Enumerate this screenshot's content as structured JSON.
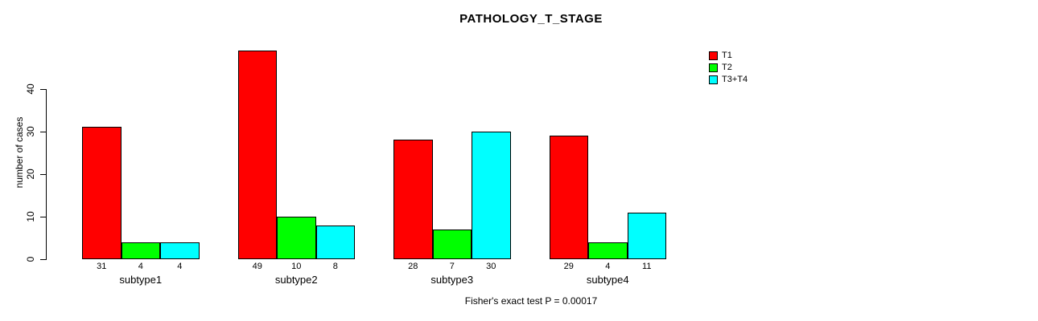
{
  "chart_data": {
    "type": "bar",
    "title": "PATHOLOGY_T_STAGE",
    "ylabel": "number of cases",
    "xlabel": "",
    "caption": "Fisher's exact test P = 0.00017",
    "categories": [
      "subtype1",
      "subtype2",
      "subtype3",
      "subtype4"
    ],
    "series": [
      {
        "name": "T1",
        "color": "#ff0000",
        "values": [
          31,
          49,
          28,
          29
        ]
      },
      {
        "name": "T2",
        "color": "#00ff00",
        "values": [
          4,
          10,
          7,
          4
        ]
      },
      {
        "name": "T3+T4",
        "color": "#00ffff",
        "values": [
          4,
          8,
          30,
          11
        ]
      }
    ],
    "bar_value_labels": [
      [
        "31",
        "4",
        "4"
      ],
      [
        "49",
        "10",
        "8"
      ],
      [
        "28",
        "7",
        "30"
      ],
      [
        "29",
        "4",
        "11"
      ]
    ],
    "yticks": [
      0,
      10,
      20,
      30,
      40
    ],
    "ylim": [
      0,
      49
    ],
    "grid": false,
    "legend_position": "top-right",
    "bar_border_color": "#000000",
    "background_color": "#ffffff",
    "text_color": "#000000"
  }
}
